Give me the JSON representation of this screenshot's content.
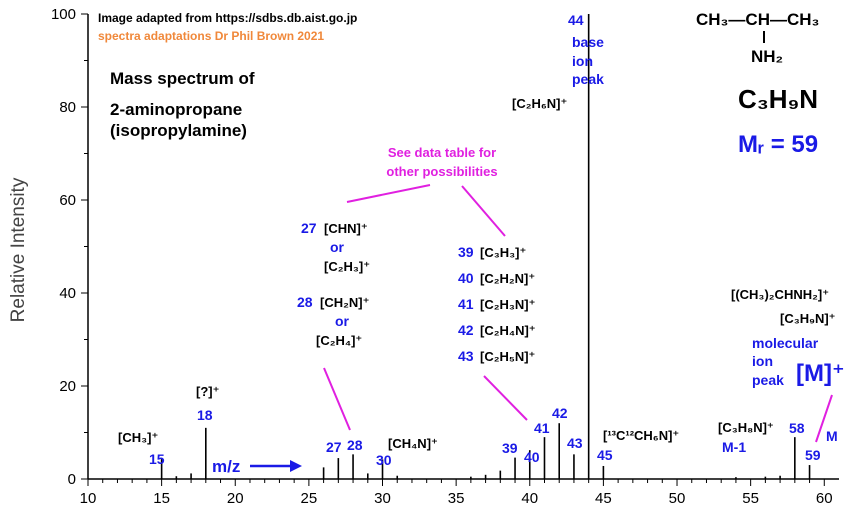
{
  "header": {
    "source": "Image adapted from https://sdbs.db.aist.go.jp",
    "credit": "spectra adaptations Dr Phil Brown 2021"
  },
  "title": {
    "line1": "Mass spectrum of",
    "line2": "2-aminopropane",
    "line3": "(isopropylamine)"
  },
  "molecule": {
    "structure_top": "CH₃—CH—CH₃",
    "structure_nh2": "NH₂",
    "formula": "C₃H₉N",
    "mr_label": "Mᵣ = 59"
  },
  "chart_data": {
    "type": "bar",
    "xlabel": "m/z",
    "ylabel": "Relative Intensity",
    "xlim": [
      10,
      61
    ],
    "ylim": [
      0,
      100
    ],
    "xticks": [
      "10",
      "15",
      "20",
      "25",
      "30",
      "35",
      "40",
      "45",
      "50",
      "55",
      "60"
    ],
    "yticks": [
      "0",
      "20",
      "40",
      "60",
      "80",
      "100"
    ],
    "peaks": [
      {
        "mz": 15,
        "intensity": 4.5
      },
      {
        "mz": 16,
        "intensity": 0.6
      },
      {
        "mz": 17,
        "intensity": 1.2
      },
      {
        "mz": 18,
        "intensity": 11
      },
      {
        "mz": 26,
        "intensity": 2.5
      },
      {
        "mz": 27,
        "intensity": 4.5
      },
      {
        "mz": 28,
        "intensity": 5.3
      },
      {
        "mz": 29,
        "intensity": 1.2
      },
      {
        "mz": 30,
        "intensity": 4.2
      },
      {
        "mz": 31,
        "intensity": 0.7
      },
      {
        "mz": 36,
        "intensity": 0.5
      },
      {
        "mz": 37,
        "intensity": 0.9
      },
      {
        "mz": 38,
        "intensity": 1.8
      },
      {
        "mz": 39,
        "intensity": 4.6
      },
      {
        "mz": 40,
        "intensity": 6.2
      },
      {
        "mz": 41,
        "intensity": 9
      },
      {
        "mz": 42,
        "intensity": 12
      },
      {
        "mz": 43,
        "intensity": 5.3
      },
      {
        "mz": 44,
        "intensity": 100
      },
      {
        "mz": 45,
        "intensity": 2.8
      },
      {
        "mz": 54,
        "intensity": 0.4
      },
      {
        "mz": 56,
        "intensity": 0.5
      },
      {
        "mz": 57,
        "intensity": 0.7
      },
      {
        "mz": 58,
        "intensity": 9
      },
      {
        "mz": 59,
        "intensity": 3
      }
    ],
    "peak_labels": [
      {
        "mz_label": "15",
        "ion": "[CH₃]⁺"
      },
      {
        "mz_label": "18",
        "ion": "[?]⁺"
      },
      {
        "mz_label": "27"
      },
      {
        "mz_label": "28"
      },
      {
        "mz_label": "30",
        "ion": "[CH₄N]⁺"
      },
      {
        "mz_label": "39"
      },
      {
        "mz_label": "40"
      },
      {
        "mz_label": "41"
      },
      {
        "mz_label": "42"
      },
      {
        "mz_label": "43"
      },
      {
        "mz_label": "44"
      },
      {
        "mz_label": "45",
        "ion": "[¹³C¹²CH₆N]⁺"
      },
      {
        "mz_label": "58"
      },
      {
        "mz_label": "59"
      }
    ],
    "legend": "none",
    "grid": false
  },
  "annotations": {
    "base_ion_peak": [
      "44",
      "base",
      "ion",
      "peak"
    ],
    "base_ion": "[C₂H₆N]⁺",
    "see_table": [
      "See data table for",
      "other possibilities"
    ],
    "group27_28": {
      "mz27": "27",
      "ion27a": "[CHN]⁺",
      "or1": "or",
      "ion27b": "[C₂H₃]⁺",
      "mz28": "28",
      "ion28a": "[CH₂N]⁺",
      "or2": "or",
      "ion28b": "[C₂H₄]⁺"
    },
    "group39_43": [
      {
        "mz": "39",
        "ion": "[C₃H₃]⁺"
      },
      {
        "mz": "40",
        "ion": "[C₂H₂N]⁺"
      },
      {
        "mz": "41",
        "ion": "[C₂H₃N]⁺"
      },
      {
        "mz": "42",
        "ion": "[C₂H₄N]⁺"
      },
      {
        "mz": "43",
        "ion": "[C₂H₅N]⁺"
      }
    ],
    "molecular_ion_names": [
      "[(CH₃)₂CHNH₂]⁺",
      "[C₃H₉N]⁺"
    ],
    "molecular_ion_peak": [
      "molecular",
      "ion",
      "peak"
    ],
    "m_plus": "[M]⁺",
    "m_label": "M",
    "m1_ion": "[C₃H₈N]⁺",
    "m1_label": "M-1"
  },
  "colors": {
    "mz_labels": "#1a1ae6",
    "annotation": "#e020e0",
    "credit": "#f0883a",
    "bars": "#000000"
  }
}
